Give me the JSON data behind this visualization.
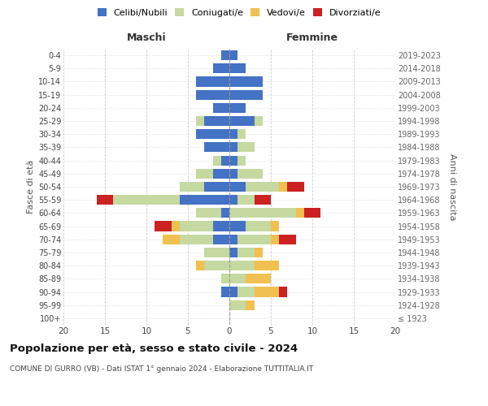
{
  "age_groups": [
    "100+",
    "95-99",
    "90-94",
    "85-89",
    "80-84",
    "75-79",
    "70-74",
    "65-69",
    "60-64",
    "55-59",
    "50-54",
    "45-49",
    "40-44",
    "35-39",
    "30-34",
    "25-29",
    "20-24",
    "15-19",
    "10-14",
    "5-9",
    "0-4"
  ],
  "birth_years": [
    "≤ 1923",
    "1924-1928",
    "1929-1933",
    "1934-1938",
    "1939-1943",
    "1944-1948",
    "1949-1953",
    "1954-1958",
    "1959-1963",
    "1964-1968",
    "1969-1973",
    "1974-1978",
    "1979-1983",
    "1984-1988",
    "1989-1993",
    "1994-1998",
    "1999-2003",
    "2004-2008",
    "2009-2013",
    "2014-2018",
    "2019-2023"
  ],
  "male": {
    "celibi": [
      0,
      0,
      1,
      0,
      0,
      0,
      2,
      2,
      1,
      6,
      3,
      2,
      1,
      3,
      4,
      3,
      2,
      4,
      4,
      2,
      1
    ],
    "coniugati": [
      0,
      0,
      0,
      1,
      3,
      3,
      4,
      4,
      3,
      8,
      3,
      2,
      1,
      0,
      0,
      1,
      0,
      0,
      0,
      0,
      0
    ],
    "vedovi": [
      0,
      0,
      0,
      0,
      1,
      0,
      2,
      1,
      0,
      0,
      0,
      0,
      0,
      0,
      0,
      0,
      0,
      0,
      0,
      0,
      0
    ],
    "divorziati": [
      0,
      0,
      0,
      0,
      0,
      0,
      0,
      2,
      0,
      2,
      0,
      0,
      0,
      0,
      0,
      0,
      0,
      0,
      0,
      0,
      0
    ]
  },
  "female": {
    "nubili": [
      0,
      0,
      1,
      0,
      0,
      1,
      1,
      2,
      0,
      1,
      2,
      1,
      1,
      1,
      1,
      3,
      2,
      4,
      4,
      2,
      1
    ],
    "coniugate": [
      0,
      2,
      2,
      2,
      3,
      2,
      4,
      3,
      8,
      2,
      4,
      3,
      1,
      2,
      1,
      1,
      0,
      0,
      0,
      0,
      0
    ],
    "vedove": [
      0,
      1,
      3,
      3,
      3,
      1,
      1,
      1,
      1,
      0,
      1,
      0,
      0,
      0,
      0,
      0,
      0,
      0,
      0,
      0,
      0
    ],
    "divorziate": [
      0,
      0,
      1,
      0,
      0,
      0,
      2,
      0,
      2,
      2,
      2,
      0,
      0,
      0,
      0,
      0,
      0,
      0,
      0,
      0,
      0
    ]
  },
  "colors": {
    "celibi": "#4472C4",
    "coniugati": "#c5d9a0",
    "vedovi": "#f0c050",
    "divorziati": "#cc2222"
  },
  "title": "Popolazione per età, sesso e stato civile - 2024",
  "subtitle": "COMUNE DI GURRO (VB) - Dati ISTAT 1° gennaio 2024 - Elaborazione TUTTITALIA.IT",
  "xlabel_left": "Maschi",
  "xlabel_right": "Femmine",
  "ylabel_left": "Fasce di età",
  "ylabel_right": "Anni di nascita",
  "xlim": 20,
  "legend_labels": [
    "Celibi/Nubili",
    "Coniugati/e",
    "Vedovi/e",
    "Divorziati/e"
  ],
  "background_color": "#ffffff",
  "grid_color": "#cccccc"
}
